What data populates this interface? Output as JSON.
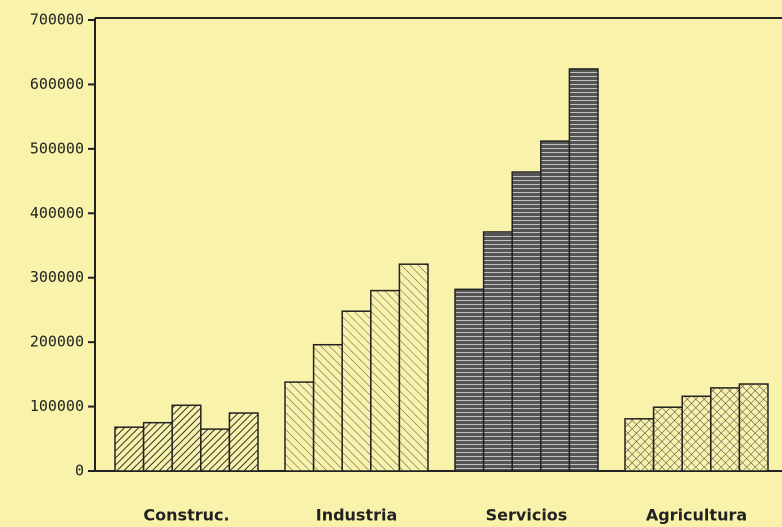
{
  "chart_data": {
    "type": "bar",
    "categories": [
      "Construc.",
      "Industria",
      "Servicios",
      "Agricultura"
    ],
    "series": [
      {
        "values": [
          68000,
          138000,
          282000,
          81000
        ]
      },
      {
        "values": [
          75000,
          196000,
          371000,
          99000
        ]
      },
      {
        "values": [
          102000,
          248000,
          464000,
          116000
        ]
      },
      {
        "values": [
          65000,
          280000,
          512000,
          129000
        ]
      },
      {
        "values": [
          90000,
          321000,
          624000,
          135000
        ]
      }
    ],
    "category_patterns": [
      "hatch-back",
      "hatch-forward",
      "horizontal",
      "crosshatch"
    ],
    "ylim": [
      0,
      700000
    ],
    "yticks": [
      0,
      100000,
      200000,
      300000,
      400000,
      500000,
      600000,
      700000
    ]
  }
}
